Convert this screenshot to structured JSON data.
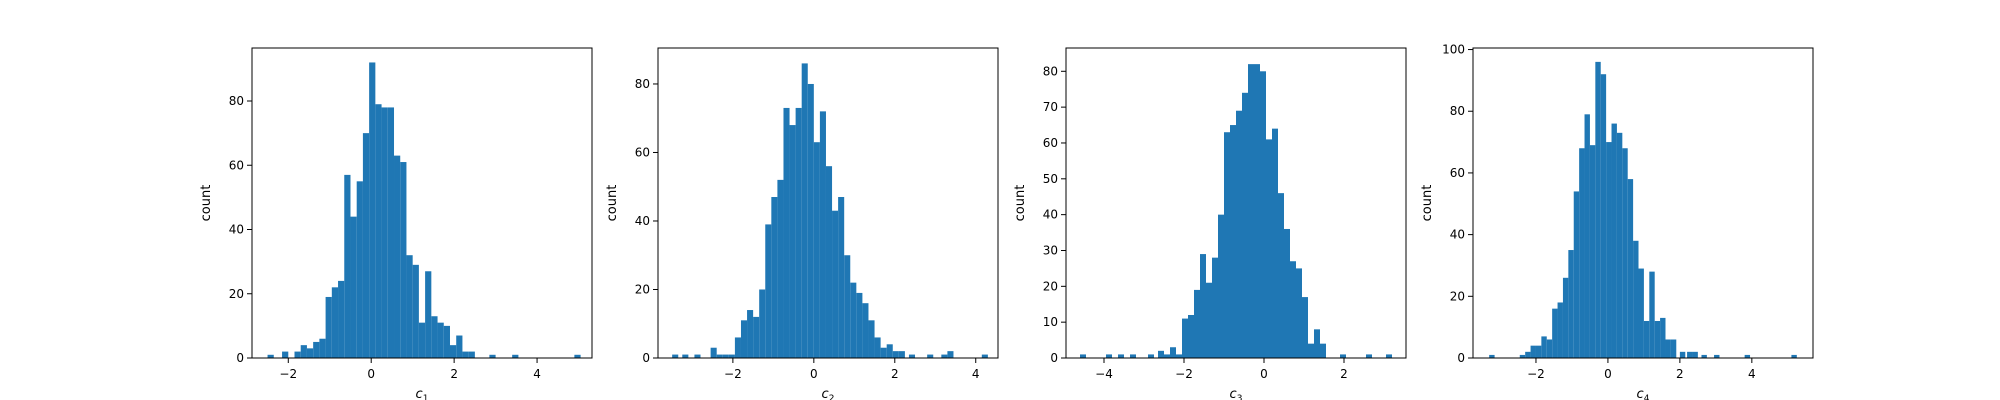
{
  "colors": {
    "bar": "#1f77b4",
    "axes": "#000000",
    "background": "#ffffff"
  },
  "chart_data": [
    {
      "type": "histogram",
      "xlabel": "c",
      "xlabel_sub": "1",
      "ylabel": "count",
      "xlim": [
        -2.875,
        5.325
      ],
      "ylim": [
        0,
        96.5
      ],
      "xticks": [
        -2,
        0,
        2,
        4
      ],
      "xtick_labels": [
        "−2",
        "0",
        "2",
        "4"
      ],
      "yticks": [
        0,
        20,
        40,
        60,
        80
      ],
      "ytick_labels": [
        "0",
        "20",
        "40",
        "60",
        "80"
      ],
      "grid": false,
      "legend": "none",
      "bins": [
        {
          "x0": -2.5,
          "x1": -2.35,
          "count": 1
        },
        {
          "x0": -2.15,
          "x1": -2.0,
          "count": 2
        },
        {
          "x0": -1.85,
          "x1": -1.7,
          "count": 2
        },
        {
          "x0": -1.7,
          "x1": -1.55,
          "count": 4
        },
        {
          "x0": -1.55,
          "x1": -1.4,
          "count": 3
        },
        {
          "x0": -1.4,
          "x1": -1.25,
          "count": 5
        },
        {
          "x0": -1.25,
          "x1": -1.1,
          "count": 6
        },
        {
          "x0": -1.1,
          "x1": -0.95,
          "count": 19
        },
        {
          "x0": -0.95,
          "x1": -0.8,
          "count": 22
        },
        {
          "x0": -0.8,
          "x1": -0.65,
          "count": 24
        },
        {
          "x0": -0.65,
          "x1": -0.5,
          "count": 57
        },
        {
          "x0": -0.5,
          "x1": -0.35,
          "count": 44
        },
        {
          "x0": -0.35,
          "x1": -0.2,
          "count": 55
        },
        {
          "x0": -0.2,
          "x1": -0.05,
          "count": 70
        },
        {
          "x0": -0.05,
          "x1": 0.1,
          "count": 92
        },
        {
          "x0": 0.1,
          "x1": 0.25,
          "count": 79
        },
        {
          "x0": 0.25,
          "x1": 0.4,
          "count": 78
        },
        {
          "x0": 0.4,
          "x1": 0.55,
          "count": 78
        },
        {
          "x0": 0.55,
          "x1": 0.7,
          "count": 63
        },
        {
          "x0": 0.7,
          "x1": 0.85,
          "count": 61
        },
        {
          "x0": 0.85,
          "x1": 1.0,
          "count": 32
        },
        {
          "x0": 1.0,
          "x1": 1.15,
          "count": 29
        },
        {
          "x0": 1.15,
          "x1": 1.3,
          "count": 11
        },
        {
          "x0": 1.3,
          "x1": 1.45,
          "count": 27
        },
        {
          "x0": 1.45,
          "x1": 1.6,
          "count": 13
        },
        {
          "x0": 1.6,
          "x1": 1.75,
          "count": 11
        },
        {
          "x0": 1.75,
          "x1": 1.9,
          "count": 10
        },
        {
          "x0": 1.9,
          "x1": 2.05,
          "count": 4
        },
        {
          "x0": 2.05,
          "x1": 2.2,
          "count": 7
        },
        {
          "x0": 2.2,
          "x1": 2.35,
          "count": 2
        },
        {
          "x0": 2.35,
          "x1": 2.5,
          "count": 2
        },
        {
          "x0": 2.85,
          "x1": 3.0,
          "count": 1
        },
        {
          "x0": 3.4,
          "x1": 3.55,
          "count": 1
        },
        {
          "x0": 4.9,
          "x1": 5.05,
          "count": 1
        }
      ]
    },
    {
      "type": "histogram",
      "xlabel": "c",
      "xlabel_sub": "2",
      "ylabel": "count",
      "xlim": [
        -3.85,
        4.55
      ],
      "ylim": [
        0,
        90.5
      ],
      "xticks": [
        -2,
        0,
        2,
        4
      ],
      "xtick_labels": [
        "−2",
        "0",
        "2",
        "4"
      ],
      "yticks": [
        0,
        20,
        40,
        60,
        80
      ],
      "ytick_labels": [
        "0",
        "20",
        "40",
        "60",
        "80"
      ],
      "grid": false,
      "legend": "none",
      "bins": [
        {
          "x0": -3.5,
          "x1": -3.35,
          "count": 1
        },
        {
          "x0": -3.25,
          "x1": -3.1,
          "count": 1
        },
        {
          "x0": -2.95,
          "x1": -2.8,
          "count": 1
        },
        {
          "x0": -2.55,
          "x1": -2.4,
          "count": 3
        },
        {
          "x0": -2.4,
          "x1": -2.25,
          "count": 1
        },
        {
          "x0": -2.25,
          "x1": -2.1,
          "count": 1
        },
        {
          "x0": -2.1,
          "x1": -1.95,
          "count": 1
        },
        {
          "x0": -1.95,
          "x1": -1.8,
          "count": 6
        },
        {
          "x0": -1.8,
          "x1": -1.65,
          "count": 11
        },
        {
          "x0": -1.65,
          "x1": -1.5,
          "count": 14
        },
        {
          "x0": -1.5,
          "x1": -1.35,
          "count": 12
        },
        {
          "x0": -1.35,
          "x1": -1.2,
          "count": 20
        },
        {
          "x0": -1.2,
          "x1": -1.05,
          "count": 39
        },
        {
          "x0": -1.05,
          "x1": -0.9,
          "count": 47
        },
        {
          "x0": -0.9,
          "x1": -0.75,
          "count": 52
        },
        {
          "x0": -0.75,
          "x1": -0.6,
          "count": 73
        },
        {
          "x0": -0.6,
          "x1": -0.45,
          "count": 68
        },
        {
          "x0": -0.45,
          "x1": -0.3,
          "count": 73
        },
        {
          "x0": -0.3,
          "x1": -0.15,
          "count": 86
        },
        {
          "x0": -0.15,
          "x1": 0.0,
          "count": 80
        },
        {
          "x0": 0.0,
          "x1": 0.15,
          "count": 63
        },
        {
          "x0": 0.15,
          "x1": 0.3,
          "count": 72
        },
        {
          "x0": 0.3,
          "x1": 0.45,
          "count": 56
        },
        {
          "x0": 0.45,
          "x1": 0.6,
          "count": 43
        },
        {
          "x0": 0.6,
          "x1": 0.75,
          "count": 47
        },
        {
          "x0": 0.75,
          "x1": 0.9,
          "count": 30
        },
        {
          "x0": 0.9,
          "x1": 1.05,
          "count": 22
        },
        {
          "x0": 1.05,
          "x1": 1.2,
          "count": 19
        },
        {
          "x0": 1.2,
          "x1": 1.35,
          "count": 16
        },
        {
          "x0": 1.35,
          "x1": 1.5,
          "count": 11
        },
        {
          "x0": 1.5,
          "x1": 1.65,
          "count": 6
        },
        {
          "x0": 1.65,
          "x1": 1.8,
          "count": 3
        },
        {
          "x0": 1.8,
          "x1": 1.95,
          "count": 4
        },
        {
          "x0": 1.95,
          "x1": 2.1,
          "count": 2
        },
        {
          "x0": 2.1,
          "x1": 2.25,
          "count": 2
        },
        {
          "x0": 2.35,
          "x1": 2.5,
          "count": 1
        },
        {
          "x0": 2.8,
          "x1": 2.95,
          "count": 1
        },
        {
          "x0": 3.15,
          "x1": 3.3,
          "count": 1
        },
        {
          "x0": 3.3,
          "x1": 3.45,
          "count": 2
        },
        {
          "x0": 4.15,
          "x1": 4.3,
          "count": 1
        }
      ]
    },
    {
      "type": "histogram",
      "xlabel": "c",
      "xlabel_sub": "3",
      "ylabel": "count",
      "xlim": [
        -4.95,
        3.55
      ],
      "ylim": [
        0,
        86.5
      ],
      "xticks": [
        -4,
        -2,
        0,
        2
      ],
      "xtick_labels": [
        "−4",
        "−2",
        "0",
        "2"
      ],
      "yticks": [
        0,
        10,
        20,
        30,
        40,
        50,
        60,
        70,
        80
      ],
      "ytick_labels": [
        "0",
        "10",
        "20",
        "30",
        "40",
        "50",
        "60",
        "70",
        "80"
      ],
      "grid": false,
      "legend": "none",
      "bins": [
        {
          "x0": -4.6,
          "x1": -4.45,
          "count": 1
        },
        {
          "x0": -3.95,
          "x1": -3.8,
          "count": 1
        },
        {
          "x0": -3.65,
          "x1": -3.5,
          "count": 1
        },
        {
          "x0": -3.35,
          "x1": -3.2,
          "count": 1
        },
        {
          "x0": -2.9,
          "x1": -2.75,
          "count": 1
        },
        {
          "x0": -2.65,
          "x1": -2.5,
          "count": 2
        },
        {
          "x0": -2.5,
          "x1": -2.35,
          "count": 1
        },
        {
          "x0": -2.35,
          "x1": -2.2,
          "count": 3
        },
        {
          "x0": -2.2,
          "x1": -2.05,
          "count": 1
        },
        {
          "x0": -2.05,
          "x1": -1.9,
          "count": 11
        },
        {
          "x0": -1.9,
          "x1": -1.75,
          "count": 12
        },
        {
          "x0": -1.75,
          "x1": -1.6,
          "count": 19
        },
        {
          "x0": -1.6,
          "x1": -1.45,
          "count": 29
        },
        {
          "x0": -1.45,
          "x1": -1.3,
          "count": 21
        },
        {
          "x0": -1.3,
          "x1": -1.15,
          "count": 28
        },
        {
          "x0": -1.15,
          "x1": -1.0,
          "count": 40
        },
        {
          "x0": -1.0,
          "x1": -0.85,
          "count": 63
        },
        {
          "x0": -0.85,
          "x1": -0.7,
          "count": 65
        },
        {
          "x0": -0.7,
          "x1": -0.55,
          "count": 69
        },
        {
          "x0": -0.55,
          "x1": -0.4,
          "count": 74
        },
        {
          "x0": -0.4,
          "x1": -0.25,
          "count": 82
        },
        {
          "x0": -0.25,
          "x1": -0.1,
          "count": 82
        },
        {
          "x0": -0.1,
          "x1": 0.05,
          "count": 80
        },
        {
          "x0": 0.05,
          "x1": 0.2,
          "count": 61
        },
        {
          "x0": 0.2,
          "x1": 0.35,
          "count": 64
        },
        {
          "x0": 0.35,
          "x1": 0.5,
          "count": 46
        },
        {
          "x0": 0.5,
          "x1": 0.65,
          "count": 36
        },
        {
          "x0": 0.65,
          "x1": 0.8,
          "count": 27
        },
        {
          "x0": 0.8,
          "x1": 0.95,
          "count": 25
        },
        {
          "x0": 0.95,
          "x1": 1.1,
          "count": 17
        },
        {
          "x0": 1.1,
          "x1": 1.25,
          "count": 4
        },
        {
          "x0": 1.25,
          "x1": 1.4,
          "count": 8
        },
        {
          "x0": 1.4,
          "x1": 1.55,
          "count": 4
        },
        {
          "x0": 1.9,
          "x1": 2.05,
          "count": 1
        },
        {
          "x0": 2.55,
          "x1": 2.7,
          "count": 1
        },
        {
          "x0": 3.05,
          "x1": 3.2,
          "count": 1
        }
      ]
    },
    {
      "type": "histogram",
      "xlabel": "c",
      "xlabel_sub": "4",
      "ylabel": "count",
      "xlim": [
        -3.75,
        5.7
      ],
      "ylim": [
        0,
        100.5
      ],
      "xticks": [
        -2,
        0,
        2,
        4
      ],
      "xtick_labels": [
        "−2",
        "0",
        "2",
        "4"
      ],
      "yticks": [
        0,
        20,
        40,
        60,
        80,
        100
      ],
      "ytick_labels": [
        "0",
        "20",
        "40",
        "60",
        "80",
        "100"
      ],
      "grid": false,
      "legend": "none",
      "bins": [
        {
          "x0": -3.3,
          "x1": -3.15,
          "count": 1
        },
        {
          "x0": -2.45,
          "x1": -2.3,
          "count": 1
        },
        {
          "x0": -2.3,
          "x1": -2.15,
          "count": 2
        },
        {
          "x0": -2.15,
          "x1": -2.0,
          "count": 4
        },
        {
          "x0": -2.0,
          "x1": -1.85,
          "count": 4
        },
        {
          "x0": -1.85,
          "x1": -1.7,
          "count": 7
        },
        {
          "x0": -1.7,
          "x1": -1.55,
          "count": 6
        },
        {
          "x0": -1.55,
          "x1": -1.4,
          "count": 16
        },
        {
          "x0": -1.4,
          "x1": -1.25,
          "count": 18
        },
        {
          "x0": -1.25,
          "x1": -1.1,
          "count": 26
        },
        {
          "x0": -1.1,
          "x1": -0.95,
          "count": 35
        },
        {
          "x0": -0.95,
          "x1": -0.8,
          "count": 54
        },
        {
          "x0": -0.8,
          "x1": -0.65,
          "count": 68
        },
        {
          "x0": -0.65,
          "x1": -0.5,
          "count": 79
        },
        {
          "x0": -0.5,
          "x1": -0.35,
          "count": 69
        },
        {
          "x0": -0.35,
          "x1": -0.2,
          "count": 96
        },
        {
          "x0": -0.2,
          "x1": -0.05,
          "count": 92
        },
        {
          "x0": -0.05,
          "x1": 0.1,
          "count": 70
        },
        {
          "x0": 0.1,
          "x1": 0.25,
          "count": 76
        },
        {
          "x0": 0.25,
          "x1": 0.4,
          "count": 73
        },
        {
          "x0": 0.4,
          "x1": 0.55,
          "count": 68
        },
        {
          "x0": 0.55,
          "x1": 0.7,
          "count": 58
        },
        {
          "x0": 0.7,
          "x1": 0.85,
          "count": 38
        },
        {
          "x0": 0.85,
          "x1": 1.0,
          "count": 29
        },
        {
          "x0": 1.0,
          "x1": 1.15,
          "count": 12
        },
        {
          "x0": 1.15,
          "x1": 1.3,
          "count": 28
        },
        {
          "x0": 1.3,
          "x1": 1.45,
          "count": 12
        },
        {
          "x0": 1.45,
          "x1": 1.6,
          "count": 13
        },
        {
          "x0": 1.6,
          "x1": 1.75,
          "count": 6
        },
        {
          "x0": 1.75,
          "x1": 1.9,
          "count": 6
        },
        {
          "x0": 2.0,
          "x1": 2.15,
          "count": 2
        },
        {
          "x0": 2.2,
          "x1": 2.35,
          "count": 2
        },
        {
          "x0": 2.35,
          "x1": 2.5,
          "count": 2
        },
        {
          "x0": 2.6,
          "x1": 2.75,
          "count": 1
        },
        {
          "x0": 2.95,
          "x1": 3.1,
          "count": 1
        },
        {
          "x0": 3.8,
          "x1": 3.95,
          "count": 1
        },
        {
          "x0": 5.1,
          "x1": 5.25,
          "count": 1
        }
      ]
    }
  ]
}
